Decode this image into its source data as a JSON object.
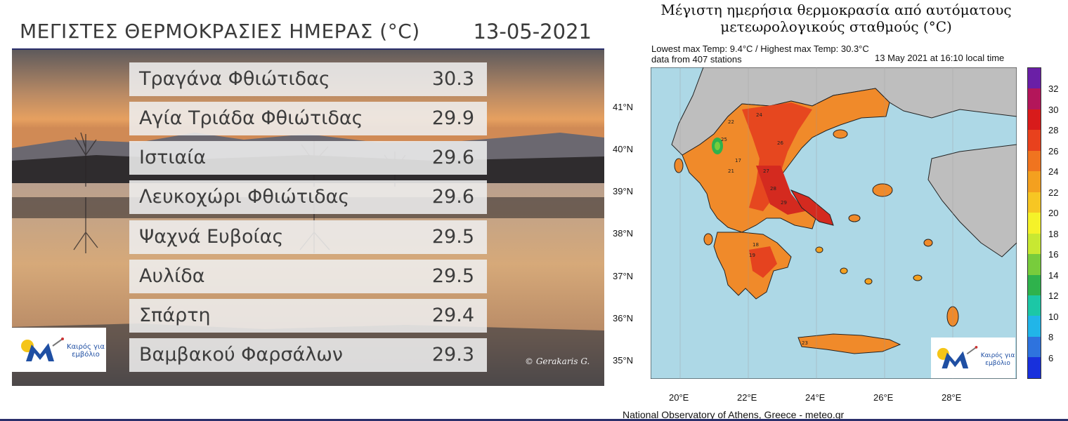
{
  "left_panel": {
    "title": "ΜΕΓΙΣΤΕΣ ΘΕΡΜΟΚΡΑΣΙΕΣ ΗΜΕΡΑΣ (°C)",
    "date": "13-05-2021",
    "rows": [
      {
        "name": "Τραγάνα Φθιώτιδας",
        "value": "30.3"
      },
      {
        "name": "Αγία Τριάδα Φθιώτιδας",
        "value": "29.9"
      },
      {
        "name": "Ιστιαία",
        "value": "29.6"
      },
      {
        "name": "Λευκοχώρι Φθιώτιδας",
        "value": "29.6"
      },
      {
        "name": "Ψαχνά Ευβοίας",
        "value": "29.5"
      },
      {
        "name": "Αυλίδα",
        "value": "29.5"
      },
      {
        "name": "Σπάρτη",
        "value": "29.4"
      },
      {
        "name": "Βαμβακού Φαρσάλων",
        "value": "29.3"
      }
    ],
    "logo_text_1": "Καιρός για",
    "logo_text_2": "εμβόλιο",
    "credit": "© Gerakaris G."
  },
  "map_panel": {
    "title_line1": "Μέγιστη ημερήσια θερμοκρασία από αυτόματους",
    "title_line2": "μετεωρολογικούς σταθμούς (°C)",
    "stats": "Lowest max Temp: 9.4°C / Highest max Temp: 30.3°C",
    "stations": "data from 407 stations",
    "timestamp": "13 May 2021 at 16:10 local time",
    "footer": "National Observatory of Athens, Greece - meteo.gr",
    "lat_labels": [
      "41°N",
      "40°N",
      "39°N",
      "38°N",
      "37°N",
      "36°N",
      "35°N"
    ],
    "lon_labels": [
      "20°E",
      "22°E",
      "24°E",
      "26°E",
      "28°E"
    ],
    "colorbar_labels": [
      "32",
      "30",
      "28",
      "26",
      "24",
      "22",
      "20",
      "18",
      "16",
      "14",
      "12",
      "10",
      "8",
      "6"
    ],
    "colorbar_colors": [
      "#6a1fa6",
      "#b3165a",
      "#d81b1b",
      "#e8411d",
      "#f0741f",
      "#f4a01f",
      "#f7c623",
      "#f5f229",
      "#c8e832",
      "#78cc3c",
      "#2fb24c",
      "#1cc7a6",
      "#21b5e8",
      "#2e73de",
      "#1830dc"
    ],
    "logo_text_1": "Καιρός για",
    "logo_text_2": "εμβόλιο",
    "station_labels": [
      "22",
      "24",
      "25",
      "26",
      "27",
      "28",
      "21",
      "19",
      "17",
      "18",
      "23",
      "29"
    ],
    "colors": {
      "sea": "#add8e6",
      "other_land": "#bebebe",
      "greece_base": "#f08a2a",
      "hot": "#e5431f",
      "very_hot": "#d42a1f",
      "mild": "#f5b42a"
    }
  }
}
